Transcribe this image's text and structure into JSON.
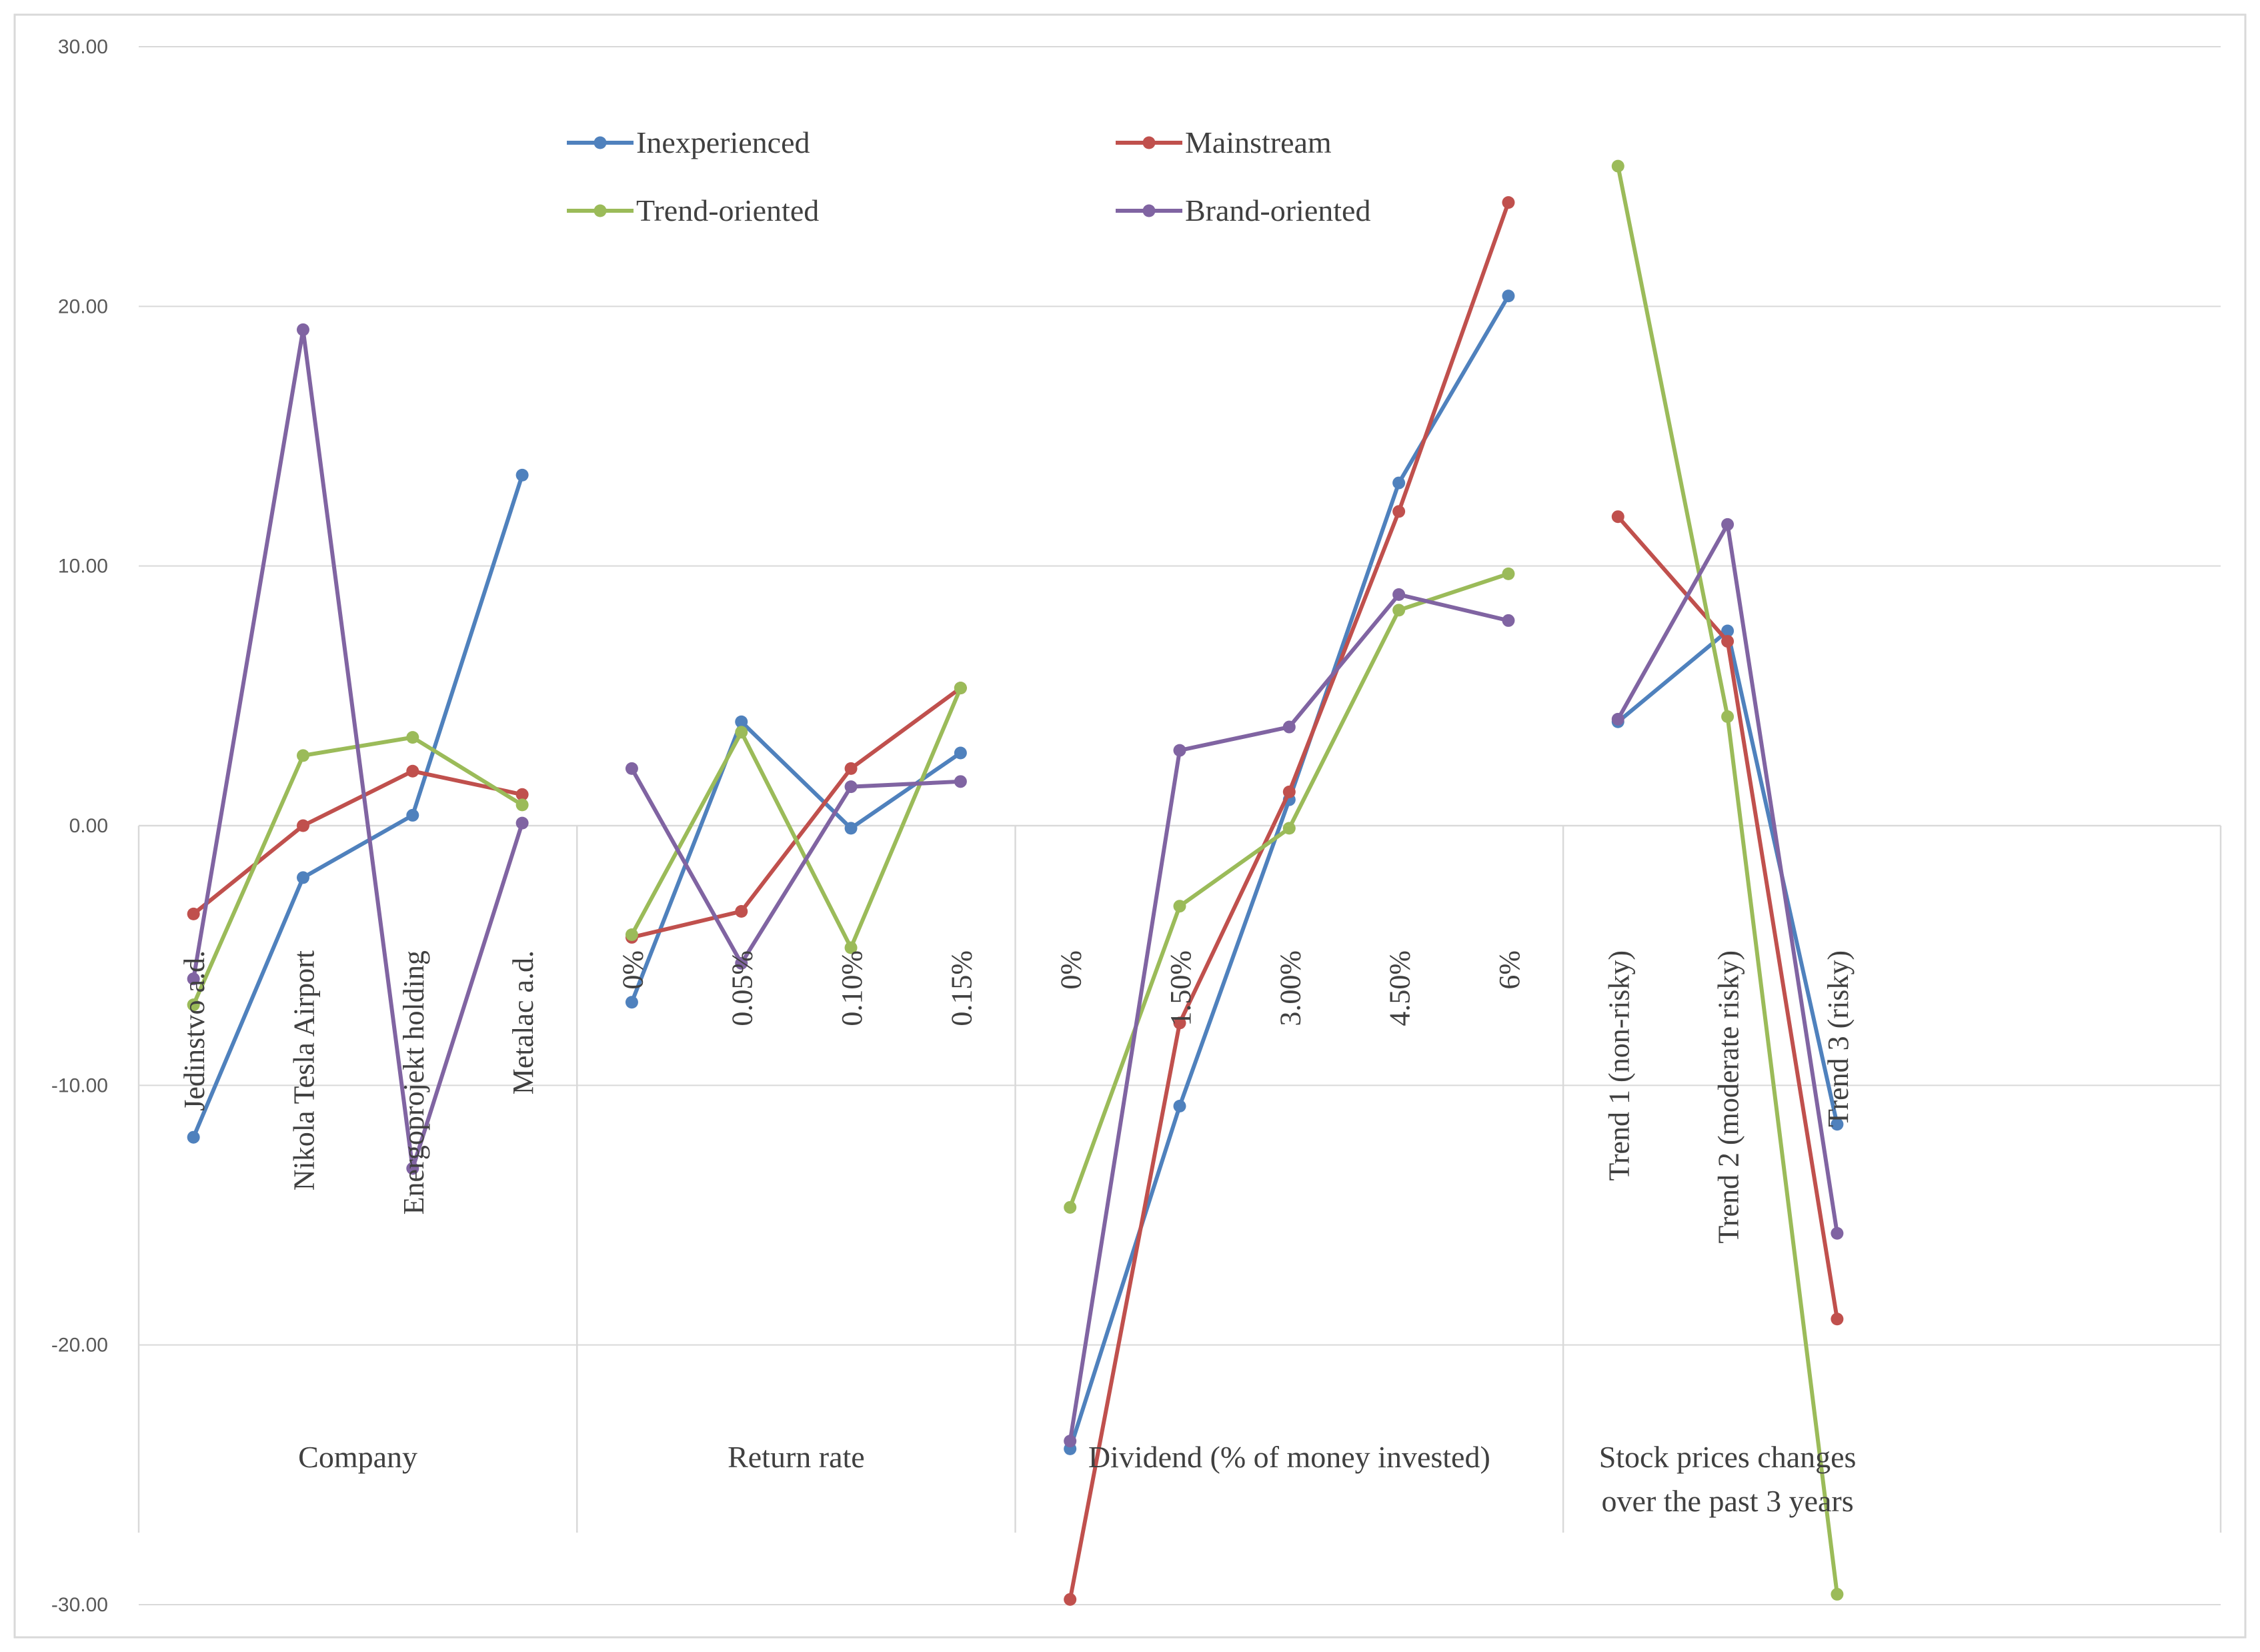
{
  "chart_data": {
    "type": "line",
    "title": "",
    "xlabel": "",
    "ylabel": "",
    "ylim": [
      -30,
      30
    ],
    "yticks": [
      "30.00",
      "20.00",
      "10.00",
      "0.00",
      "-10.00",
      "-20.00",
      "-30.00"
    ],
    "grid": true,
    "legend_position": "top-left",
    "groups": [
      {
        "label": "Company",
        "categories": [
          "Jedinstvo a.d.",
          "Nikola Tesla Airport",
          "Energoprojekt holding",
          "Metalac a.d."
        ]
      },
      {
        "label": "Return rate",
        "categories": [
          "0%",
          "0.05%",
          "0.10%",
          "0.15%"
        ]
      },
      {
        "label": "Dividend (% of money invested)",
        "categories": [
          "0%",
          "1.50%",
          "3.00%",
          "4.50%",
          "6%"
        ]
      },
      {
        "label": "Stock prices changes over the past 3 years",
        "label_lines": [
          "Stock prices changes",
          "over the past 3 years"
        ],
        "categories": [
          "Trend 1 (non-risky)",
          "Trend 2 (moderate risky)",
          "Trend 3 (risky)"
        ]
      }
    ],
    "series": [
      {
        "name": "Inexperienced",
        "color": "#4F81BD",
        "groups": [
          [
            -12.0,
            -2.0,
            0.4,
            13.5
          ],
          [
            -6.8,
            4.0,
            -0.1,
            2.8
          ],
          [
            -24.0,
            -10.8,
            1.0,
            13.2,
            20.4
          ],
          [
            4.0,
            7.5,
            -11.5
          ]
        ]
      },
      {
        "name": "Mainstream",
        "color": "#C0504D",
        "groups": [
          [
            -3.4,
            0.0,
            2.1,
            1.2
          ],
          [
            -4.3,
            -3.3,
            2.2,
            5.3
          ],
          [
            -29.8,
            -7.6,
            1.3,
            12.1,
            24.0
          ],
          [
            11.9,
            7.1,
            -19.0
          ]
        ]
      },
      {
        "name": "Trend-oriented",
        "color": "#9BBB59",
        "groups": [
          [
            -6.9,
            2.7,
            3.4,
            0.8
          ],
          [
            -4.2,
            3.6,
            -4.7,
            5.3
          ],
          [
            -14.7,
            -3.1,
            -0.1,
            8.3,
            9.7
          ],
          [
            25.4,
            4.2,
            -29.6
          ]
        ]
      },
      {
        "name": "Brand-oriented",
        "color": "#8064A2",
        "groups": [
          [
            -5.9,
            19.1,
            -13.2,
            0.1
          ],
          [
            2.2,
            -5.3,
            1.5,
            1.7
          ],
          [
            -23.7,
            2.9,
            3.8,
            8.9,
            7.9
          ],
          [
            4.1,
            11.6,
            -15.7
          ]
        ]
      }
    ]
  }
}
